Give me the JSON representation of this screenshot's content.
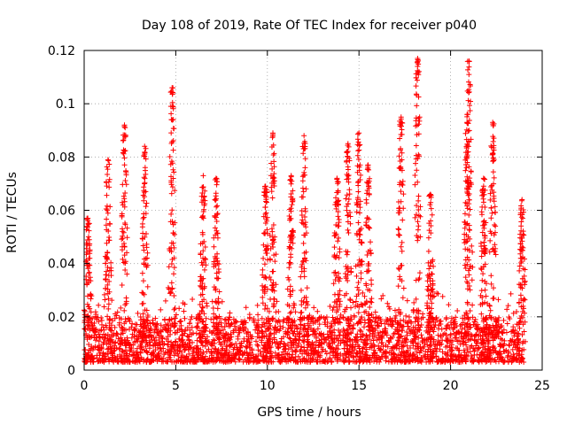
{
  "chart_data": {
    "type": "scatter",
    "title": "Day 108 of 2019, Rate Of TEC Index for receiver p040",
    "xlabel": "GPS time / hours",
    "ylabel": "ROTI / TECUs",
    "xlim": [
      0,
      25
    ],
    "ylim": [
      0,
      0.12
    ],
    "x_ticks": [
      0,
      5,
      10,
      15,
      20,
      25
    ],
    "y_ticks": [
      0,
      0.02,
      0.04,
      0.06,
      0.08,
      0.1,
      0.12
    ],
    "x_tick_labels": [
      "0",
      "5",
      "10",
      "15",
      "20",
      "25"
    ],
    "y_tick_labels": [
      "0",
      "0.02",
      "0.04",
      "0.06",
      "0.08",
      "0.1",
      "0.12"
    ],
    "grid": true,
    "marker": "plus",
    "series": [
      {
        "name": "ROTI",
        "color": "#ff0000",
        "baseline_band": [
          0.003,
          0.02
        ],
        "x_range": [
          0,
          24
        ],
        "peaks": [
          {
            "x": 0.2,
            "y": 0.057
          },
          {
            "x": 1.3,
            "y": 0.079
          },
          {
            "x": 2.2,
            "y": 0.092
          },
          {
            "x": 3.3,
            "y": 0.084
          },
          {
            "x": 4.8,
            "y": 0.106
          },
          {
            "x": 6.5,
            "y": 0.073
          },
          {
            "x": 7.2,
            "y": 0.072
          },
          {
            "x": 9.9,
            "y": 0.069
          },
          {
            "x": 10.3,
            "y": 0.089
          },
          {
            "x": 11.3,
            "y": 0.073
          },
          {
            "x": 12.0,
            "y": 0.088
          },
          {
            "x": 13.8,
            "y": 0.072
          },
          {
            "x": 14.4,
            "y": 0.085
          },
          {
            "x": 15.0,
            "y": 0.089
          },
          {
            "x": 15.5,
            "y": 0.077
          },
          {
            "x": 17.3,
            "y": 0.095
          },
          {
            "x": 18.2,
            "y": 0.117
          },
          {
            "x": 18.9,
            "y": 0.066
          },
          {
            "x": 20.9,
            "y": 0.096
          },
          {
            "x": 21.0,
            "y": 0.116
          },
          {
            "x": 21.8,
            "y": 0.072
          },
          {
            "x": 22.3,
            "y": 0.093
          },
          {
            "x": 23.9,
            "y": 0.064
          }
        ]
      }
    ]
  }
}
